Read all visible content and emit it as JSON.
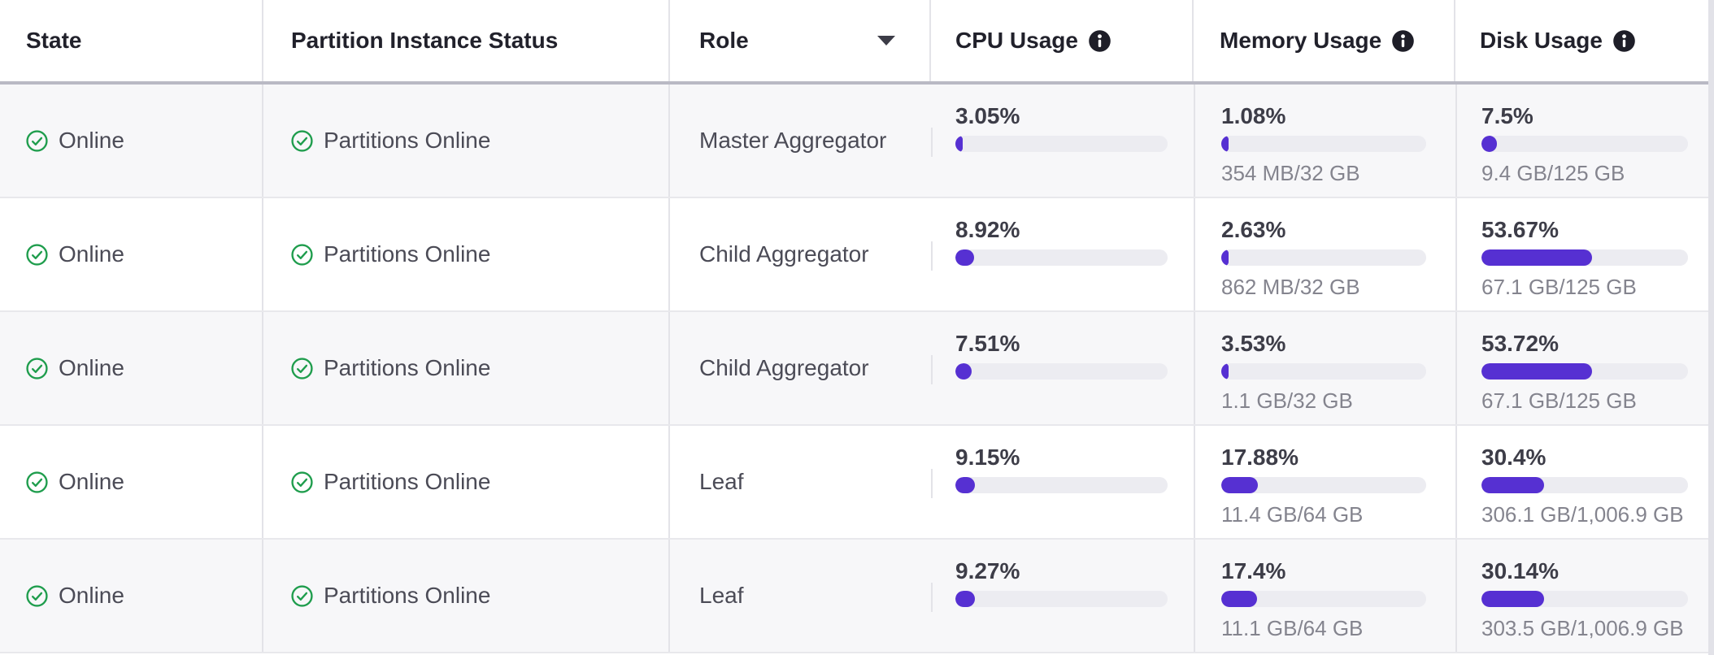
{
  "colors": {
    "accent": "#5630D2",
    "status_green": "#1F9D4D",
    "bar_track": "#ECECF1"
  },
  "icons": {
    "status": "check-circle",
    "column_info": "info-circle",
    "role_sort": "caret-down"
  },
  "table": {
    "columns": [
      {
        "key": "state",
        "label": "State",
        "info": false,
        "sorted": false
      },
      {
        "key": "partition_status",
        "label": "Partition Instance Status",
        "info": false,
        "sorted": false
      },
      {
        "key": "role",
        "label": "Role",
        "info": false,
        "sorted": true
      },
      {
        "key": "cpu",
        "label": "CPU Usage",
        "info": true,
        "sorted": false
      },
      {
        "key": "memory",
        "label": "Memory Usage",
        "info": true,
        "sorted": false
      },
      {
        "key": "disk",
        "label": "Disk Usage",
        "info": true,
        "sorted": false
      }
    ],
    "rows": [
      {
        "state": "Online",
        "partition_status": "Partitions Online",
        "role": "Master Aggregator",
        "cpu": {
          "percent_label": "3.05%",
          "percent": 3.05
        },
        "memory": {
          "percent_label": "1.08%",
          "percent": 1.08,
          "detail": "354 MB/32 GB"
        },
        "disk": {
          "percent_label": "7.5%",
          "percent": 7.5,
          "detail": "9.4 GB/125 GB"
        }
      },
      {
        "state": "Online",
        "partition_status": "Partitions Online",
        "role": "Child Aggregator",
        "cpu": {
          "percent_label": "8.92%",
          "percent": 8.92
        },
        "memory": {
          "percent_label": "2.63%",
          "percent": 2.63,
          "detail": "862 MB/32 GB"
        },
        "disk": {
          "percent_label": "53.67%",
          "percent": 53.67,
          "detail": "67.1 GB/125 GB"
        }
      },
      {
        "state": "Online",
        "partition_status": "Partitions Online",
        "role": "Child Aggregator",
        "cpu": {
          "percent_label": "7.51%",
          "percent": 7.51
        },
        "memory": {
          "percent_label": "3.53%",
          "percent": 3.53,
          "detail": "1.1 GB/32 GB"
        },
        "disk": {
          "percent_label": "53.72%",
          "percent": 53.72,
          "detail": "67.1 GB/125 GB"
        }
      },
      {
        "state": "Online",
        "partition_status": "Partitions Online",
        "role": "Leaf",
        "cpu": {
          "percent_label": "9.15%",
          "percent": 9.15
        },
        "memory": {
          "percent_label": "17.88%",
          "percent": 17.88,
          "detail": "11.4 GB/64 GB"
        },
        "disk": {
          "percent_label": "30.4%",
          "percent": 30.4,
          "detail": "306.1 GB/1,006.9 GB"
        }
      },
      {
        "state": "Online",
        "partition_status": "Partitions Online",
        "role": "Leaf",
        "cpu": {
          "percent_label": "9.27%",
          "percent": 9.27
        },
        "memory": {
          "percent_label": "17.4%",
          "percent": 17.4,
          "detail": "11.1 GB/64 GB"
        },
        "disk": {
          "percent_label": "30.14%",
          "percent": 30.14,
          "detail": "303.5 GB/1,006.9 GB"
        }
      }
    ]
  }
}
